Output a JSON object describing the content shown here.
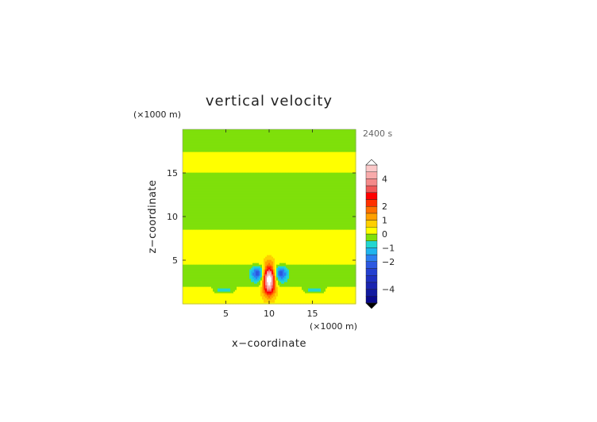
{
  "chart_data": {
    "type": "heatmap",
    "title": "vertical velocity",
    "xlabel": "x−coordinate",
    "ylabel": "z−coordinate",
    "x_unit": "(×1000 m)",
    "y_unit": "(×1000 m)",
    "time_label": "2400 s",
    "xlim": [
      0,
      20
    ],
    "ylim": [
      0,
      20
    ],
    "x_ticks": [
      5,
      10,
      15
    ],
    "y_ticks": [
      5,
      10,
      15
    ],
    "colorbar": {
      "vmin": -5,
      "vmax": 5,
      "ticks": [
        4,
        2,
        1,
        0,
        -1,
        -2,
        -4
      ],
      "tick_labels": [
        "4",
        "2",
        "1",
        "0",
        "−1",
        "−2",
        "−4"
      ]
    },
    "field": {
      "bands": [
        {
          "z0": 0,
          "z1": 2,
          "sign": 1,
          "amp": 0.35,
          "x_half_width": 14
        },
        {
          "z0": 2,
          "z1": 4.5,
          "sign": -1,
          "amp": 0.3,
          "x_half_width": 14
        },
        {
          "z0": 4.5,
          "z1": 8.5,
          "sign": 1,
          "amp": 0.3,
          "x_half_width": 14
        },
        {
          "z0": 8.5,
          "z1": 10.5,
          "sign": -1,
          "amp": 0.3,
          "x_half_width": 5
        },
        {
          "z0": 10.5,
          "z1": 15,
          "sign": -1,
          "amp": 0.3,
          "x_half_width": 5
        },
        {
          "z0": 15,
          "z1": 17.5,
          "sign": 1,
          "amp": 0.3,
          "x_half_width": 5
        },
        {
          "z0": 17.5,
          "z1": 20,
          "sign": -1,
          "amp": 0.3,
          "x_half_width": 5
        }
      ],
      "updraft": {
        "x": 10,
        "z": 2.8,
        "amp": 6.0,
        "sx": 0.45,
        "sz": 1.1
      },
      "downdrafts": [
        {
          "x": 8.6,
          "z": 3.5,
          "amp": -2.0,
          "sx": 0.45,
          "sz": 0.55
        },
        {
          "x": 11.4,
          "z": 3.5,
          "amp": -2.0,
          "sx": 0.45,
          "sz": 0.55
        },
        {
          "x": 4.8,
          "z": 1.6,
          "amp": -1.3,
          "sx": 0.8,
          "sz": 0.25
        },
        {
          "x": 15.2,
          "z": 1.6,
          "amp": -1.3,
          "sx": 0.8,
          "sz": 0.25
        }
      ]
    }
  },
  "colors": {
    "below_min": "#000000",
    "levels": [
      {
        "from": -5.0,
        "to": -4.5,
        "color": "#0a0a8c"
      },
      {
        "from": -4.5,
        "to": -4.0,
        "color": "#121aa0"
      },
      {
        "from": -4.0,
        "to": -3.5,
        "color": "#1a24b0"
      },
      {
        "from": -3.5,
        "to": -3.0,
        "color": "#1e30c0"
      },
      {
        "from": -3.0,
        "to": -2.5,
        "color": "#2440d0"
      },
      {
        "from": -2.5,
        "to": -2.0,
        "color": "#2c58e0"
      },
      {
        "from": -2.0,
        "to": -1.5,
        "color": "#2c7ff0"
      },
      {
        "from": -1.5,
        "to": -1.0,
        "color": "#1fb4ee"
      },
      {
        "from": -1.0,
        "to": -0.5,
        "color": "#22d6d0"
      },
      {
        "from": -0.5,
        "to": 0.0,
        "color": "#7fe00a"
      },
      {
        "from": 0.0,
        "to": 0.5,
        "color": "#ffff00"
      },
      {
        "from": 0.5,
        "to": 1.0,
        "color": "#ffcf00"
      },
      {
        "from": 1.0,
        "to": 1.5,
        "color": "#ffa000"
      },
      {
        "from": 1.5,
        "to": 2.0,
        "color": "#ff7000"
      },
      {
        "from": 2.0,
        "to": 2.5,
        "color": "#ff3000"
      },
      {
        "from": 2.5,
        "to": 3.0,
        "color": "#ff0000"
      },
      {
        "from": 3.0,
        "to": 3.5,
        "color": "#f05858"
      },
      {
        "from": 3.5,
        "to": 4.0,
        "color": "#f48a8a"
      },
      {
        "from": 4.0,
        "to": 4.5,
        "color": "#f8aaaa"
      },
      {
        "from": 4.5,
        "to": 5.0,
        "color": "#fbc8c8"
      }
    ],
    "above_max": "#ffffff"
  }
}
